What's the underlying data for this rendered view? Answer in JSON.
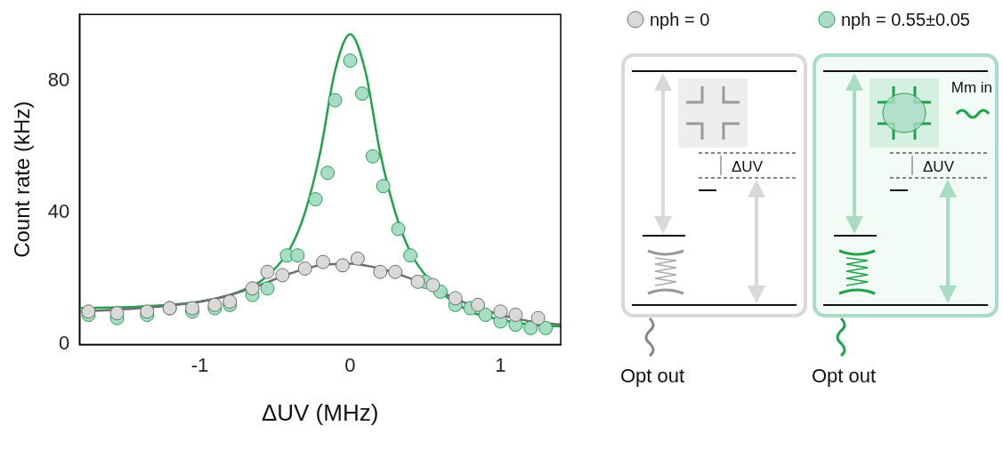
{
  "chart_data": {
    "type": "scatter",
    "x_label": "ΔUV (MHz)",
    "y_label": "Count rate (kHz)",
    "xlim": [
      -1.8,
      1.4
    ],
    "xticks": [
      -1,
      0,
      1
    ],
    "ylim": [
      0,
      100
    ],
    "yticks": [
      0,
      40,
      80
    ],
    "grid": false,
    "legend": "right",
    "series": [
      {
        "name": "nph = 0",
        "color": "#d9d9d9",
        "fit_color": "#6e6e6e",
        "marker": "circle",
        "x": [
          -1.74,
          -1.55,
          -1.35,
          -1.2,
          -1.05,
          -0.9,
          -0.8,
          -0.65,
          -0.55,
          -0.45,
          -0.3,
          -0.18,
          -0.05,
          0.05,
          0.2,
          0.3,
          0.45,
          0.55,
          0.7,
          0.85,
          1.0,
          1.1,
          1.25
        ],
        "values": [
          10,
          9.5,
          10,
          11,
          11,
          12,
          13,
          17,
          22,
          21,
          23,
          25,
          24,
          26,
          22,
          22,
          19,
          18,
          14,
          12,
          10,
          9,
          8
        ],
        "fit_x": [
          -1.8,
          -1.4,
          -1.0,
          -0.8,
          -0.6,
          -0.4,
          -0.2,
          0,
          0.2,
          0.4,
          0.6,
          0.8,
          1.0,
          1.2,
          1.4
        ],
        "fit_values": [
          10,
          11,
          13,
          15,
          18,
          21.5,
          24,
          24.5,
          23,
          20,
          16,
          12,
          9,
          7,
          6
        ]
      },
      {
        "name": "nph = 0.55±0.05",
        "color": "#a9dcc6",
        "fit_color": "#1fa34a",
        "marker": "circle",
        "x": [
          -1.74,
          -1.55,
          -1.35,
          -1.2,
          -1.05,
          -0.9,
          -0.8,
          -0.65,
          -0.55,
          -0.42,
          -0.35,
          -0.23,
          -0.15,
          -0.1,
          0,
          0.08,
          0.15,
          0.22,
          0.32,
          0.4,
          0.5,
          0.6,
          0.7,
          0.8,
          0.9,
          1.0,
          1.1,
          1.2,
          1.3
        ],
        "values": [
          9,
          8,
          9,
          11,
          10,
          11,
          12,
          15,
          17,
          27,
          27,
          44,
          52,
          74,
          86,
          76,
          57,
          48,
          35,
          27,
          19,
          16,
          12,
          11,
          9,
          7,
          6,
          5,
          5
        ],
        "fit_x": [
          -1.8,
          -1.4,
          -1.0,
          -0.8,
          -0.6,
          -0.5,
          -0.4,
          -0.3,
          -0.2,
          -0.1,
          0,
          0.1,
          0.2,
          0.3,
          0.4,
          0.5,
          0.6,
          0.8,
          1.0,
          1.2,
          1.4
        ],
        "fit_values": [
          11,
          11.5,
          13,
          15,
          19,
          23,
          29,
          40,
          58,
          83,
          94,
          83,
          58,
          40,
          28,
          21,
          16,
          10,
          7.5,
          6,
          5.5
        ]
      }
    ]
  },
  "diagram": {
    "panels": [
      {
        "delta_label": "ΔUV",
        "output_label": "Opt out"
      },
      {
        "delta_label": "ΔUV",
        "input_label": "Mm in",
        "output_label": "Opt out"
      }
    ]
  }
}
